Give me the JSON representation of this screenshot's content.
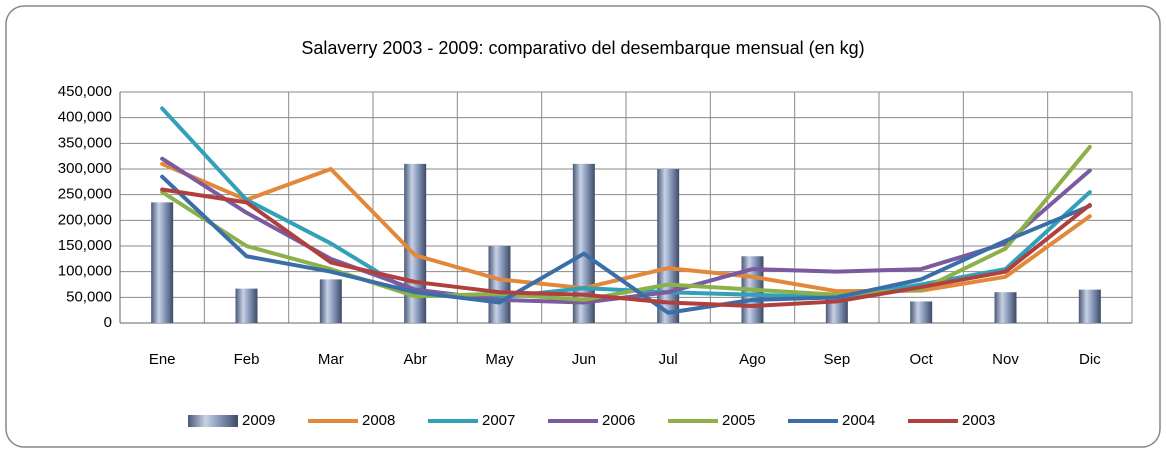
{
  "chart_data": {
    "type": "combo",
    "title": "Salaverry 2003 - 2009: comparativo del desembarque mensual (en kg)",
    "categories": [
      "Ene",
      "Feb",
      "Mar",
      "Abr",
      "May",
      "Jun",
      "Jul",
      "Ago",
      "Sep",
      "Oct",
      "Nov",
      "Dic"
    ],
    "series": [
      {
        "name": "2009",
        "type": "bar",
        "color": "#8c9dbf",
        "values": [
          235000,
          67000,
          85000,
          310000,
          150000,
          310000,
          300000,
          130000,
          50000,
          42000,
          60000,
          65000
        ]
      },
      {
        "name": "2008",
        "type": "line",
        "color": "#e2883a",
        "values": [
          310000,
          240000,
          300000,
          132000,
          85000,
          68000,
          107000,
          90000,
          62000,
          63000,
          90000,
          208000
        ]
      },
      {
        "name": "2007",
        "type": "line",
        "color": "#31a0b8",
        "values": [
          418000,
          240000,
          155000,
          55000,
          50000,
          68000,
          60000,
          55000,
          50000,
          75000,
          105000,
          255000
        ]
      },
      {
        "name": "2006",
        "type": "line",
        "color": "#7b5aa0",
        "values": [
          320000,
          215000,
          125000,
          65000,
          45000,
          40000,
          60000,
          105000,
          100000,
          105000,
          155000,
          297000
        ]
      },
      {
        "name": "2005",
        "type": "line",
        "color": "#8cb04a",
        "values": [
          255000,
          150000,
          105000,
          52000,
          57000,
          45000,
          75000,
          65000,
          55000,
          65000,
          145000,
          343000
        ]
      },
      {
        "name": "2004",
        "type": "line",
        "color": "#3a6ea8",
        "values": [
          285000,
          130000,
          100000,
          60000,
          40000,
          135000,
          20000,
          45000,
          50000,
          85000,
          160000,
          228000
        ]
      },
      {
        "name": "2003",
        "type": "line",
        "color": "#b04040",
        "values": [
          260000,
          235000,
          118000,
          80000,
          60000,
          55000,
          40000,
          33000,
          42000,
          70000,
          100000,
          230000
        ]
      }
    ],
    "ylim": [
      0,
      450000
    ],
    "yticks": [
      0,
      {
        "value": 50000,
        "label": "50,000"
      },
      {
        "value": 100000,
        "label": "100,000"
      },
      {
        "value": 150000,
        "label": "150,000"
      },
      {
        "value": 200000,
        "label": "200,000"
      },
      {
        "value": 250000,
        "label": "250,000"
      },
      {
        "value": 300000,
        "label": "300,000"
      },
      {
        "value": 350000,
        "label": "350,000"
      },
      {
        "value": 400000,
        "label": "400,000"
      },
      {
        "value": 450000,
        "label": "450,000"
      }
    ],
    "grid": true,
    "legend": "bottom"
  }
}
